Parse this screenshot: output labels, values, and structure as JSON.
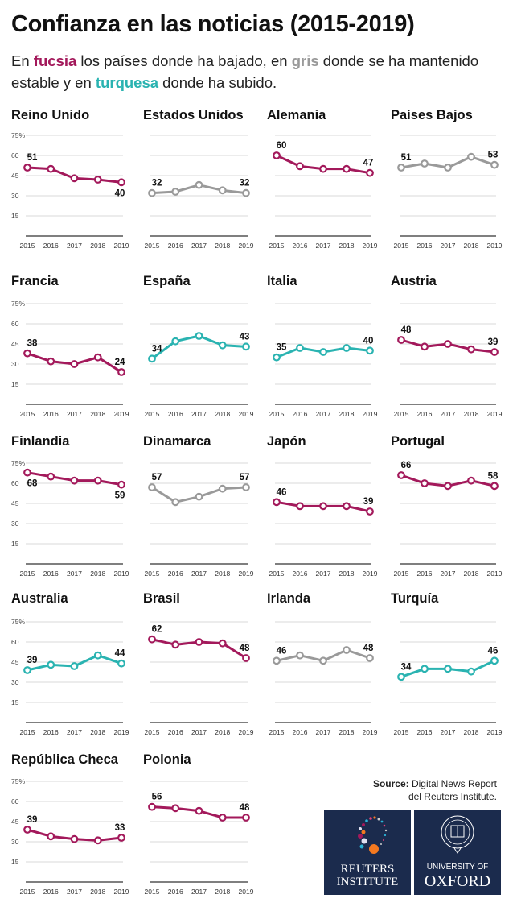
{
  "header": {
    "title": "Confianza en las noticias (2015-2019)",
    "subtitle_parts": [
      "En ",
      "fucsia",
      " los países donde ha bajado, en ",
      "gris",
      " donde se ha mantenido estable y en ",
      "turquesa",
      " donde ha subido."
    ]
  },
  "colors": {
    "down": "#a3195b",
    "stable": "#9a9a9a",
    "up": "#2ab3b1",
    "grid": "#d9d9d9",
    "axis": "#555555"
  },
  "chart_data": {
    "type": "line",
    "x": [
      "2015",
      "2016",
      "2017",
      "2018",
      "2019"
    ],
    "ylim": [
      0,
      75
    ],
    "yticks": [
      "15",
      "30",
      "45",
      "60",
      "75%"
    ],
    "grid": true,
    "panels": [
      {
        "name": "Reino Unido",
        "trend": "down",
        "values": [
          51,
          50,
          43,
          42,
          40
        ],
        "labels": [
          "51",
          "40"
        ]
      },
      {
        "name": "Estados Unidos",
        "trend": "stable",
        "values": [
          32,
          33,
          38,
          34,
          32
        ],
        "labels": [
          "32",
          "32"
        ]
      },
      {
        "name": "Alemania",
        "trend": "down",
        "values": [
          60,
          52,
          50,
          50,
          47
        ],
        "labels": [
          "60",
          "47"
        ]
      },
      {
        "name": "Países Bajos",
        "trend": "stable",
        "values": [
          51,
          54,
          51,
          59,
          53
        ],
        "labels": [
          "51",
          "53"
        ]
      },
      {
        "name": "Francia",
        "trend": "down",
        "values": [
          38,
          32,
          30,
          35,
          24
        ],
        "labels": [
          "38",
          "24"
        ]
      },
      {
        "name": "España",
        "trend": "up",
        "values": [
          34,
          47,
          51,
          44,
          43
        ],
        "labels": [
          "34",
          "43"
        ]
      },
      {
        "name": "Italia",
        "trend": "up",
        "values": [
          35,
          42,
          39,
          42,
          40
        ],
        "labels": [
          "35",
          "40"
        ]
      },
      {
        "name": "Austria",
        "trend": "down",
        "values": [
          48,
          43,
          45,
          41,
          39
        ],
        "labels": [
          "48",
          "39"
        ]
      },
      {
        "name": "Finlandia",
        "trend": "down",
        "values": [
          68,
          65,
          62,
          62,
          59
        ],
        "labels": [
          "68",
          "59"
        ]
      },
      {
        "name": "Dinamarca",
        "trend": "stable",
        "values": [
          57,
          46,
          50,
          56,
          57
        ],
        "labels": [
          "57",
          "57"
        ]
      },
      {
        "name": "Japón",
        "trend": "down",
        "values": [
          46,
          43,
          43,
          43,
          39
        ],
        "labels": [
          "46",
          "39"
        ]
      },
      {
        "name": "Portugal",
        "trend": "down",
        "values": [
          66,
          60,
          58,
          62,
          58
        ],
        "labels": [
          "66",
          "58"
        ]
      },
      {
        "name": "Australia",
        "trend": "up",
        "values": [
          39,
          43,
          42,
          50,
          44
        ],
        "labels": [
          "39",
          "44"
        ]
      },
      {
        "name": "Brasil",
        "trend": "down",
        "values": [
          62,
          58,
          60,
          59,
          48
        ],
        "labels": [
          "62",
          "48"
        ]
      },
      {
        "name": "Irlanda",
        "trend": "stable",
        "values": [
          46,
          50,
          46,
          54,
          48
        ],
        "labels": [
          "46",
          "48"
        ]
      },
      {
        "name": "Turquía",
        "trend": "up",
        "values": [
          34,
          40,
          40,
          38,
          46
        ],
        "labels": [
          "34",
          "46"
        ]
      },
      {
        "name": "República Checa",
        "trend": "down",
        "values": [
          39,
          34,
          32,
          31,
          33
        ],
        "labels": [
          "39",
          "33"
        ]
      },
      {
        "name": "Polonia",
        "trend": "down",
        "values": [
          56,
          55,
          53,
          48,
          48
        ],
        "labels": [
          "56",
          "48"
        ]
      }
    ]
  },
  "source": {
    "label": "Source:",
    "line1": " Digital News Report",
    "line2": "del Reuters Institute."
  },
  "logos": {
    "reuters": [
      "REUTERS",
      "INSTITUTE"
    ],
    "oxford": [
      "UNIVERSITY OF",
      "OXFORD"
    ]
  }
}
